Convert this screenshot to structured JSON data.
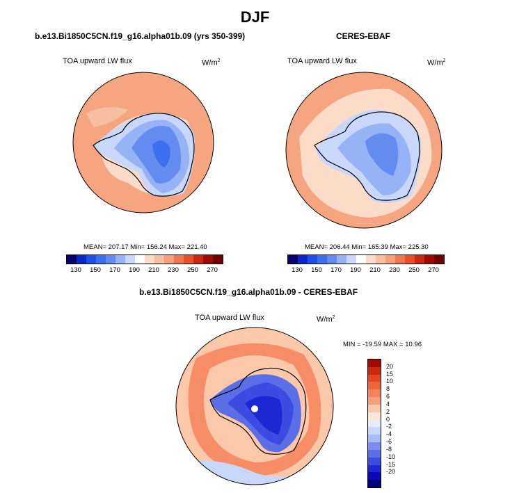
{
  "page": {
    "title": "DJF"
  },
  "panels": {
    "model": {
      "title": "b.e13.Bi1850C5CN.f19_g16.alpha01b.09 (yrs 350-399)",
      "variable": "TOA upward LW flux",
      "units": "W/m",
      "units_exp": "2",
      "stats": "MEAN= 207.17  Min= 156.24  Max= 221.40"
    },
    "obs": {
      "title": "CERES-EBAF",
      "variable": "TOA upward LW flux",
      "units": "W/m",
      "units_exp": "2",
      "stats": "MEAN= 206.44  Min= 165.39  Max= 225.30"
    },
    "diff": {
      "title": "b.e13.Bi1850C5CN.f19_g16.alpha01b.09 - CERES-EBAF",
      "variable": "TOA upward LW flux",
      "units": "W/m",
      "units_exp": "2",
      "stats": "MIN = -19.59 MAX =  10.96"
    }
  },
  "colorbars": {
    "abs": {
      "colors": [
        "#08006e",
        "#0a28c8",
        "#1e50e6",
        "#3c6ef0",
        "#648cf0",
        "#96b4f5",
        "#c8d7fa",
        "#ffffff",
        "#fbdcc8",
        "#f7bea0",
        "#f5a078",
        "#f07850",
        "#e65028",
        "#c8280f",
        "#a00a00",
        "#6e0000"
      ],
      "tick_labels": [
        "130",
        "150",
        "170",
        "190",
        "210",
        "230",
        "250",
        "270"
      ]
    },
    "diff": {
      "colors": [
        "#a00a00",
        "#c8280f",
        "#e6461e",
        "#f0643c",
        "#f5825a",
        "#f7a07d",
        "#fbc8aa",
        "#fde6d7",
        "#e6eefa",
        "#c8d7fa",
        "#a5bef5",
        "#828cf0",
        "#5a6ee6",
        "#3c4be1",
        "#1e28d2",
        "#0a0ab4",
        "#00007d"
      ],
      "tick_labels": [
        "20",
        "15",
        "10",
        "8",
        "6",
        "4",
        "2",
        "0",
        "-2",
        "-4",
        "-6",
        "-8",
        "-10",
        "-15",
        "-20"
      ]
    }
  }
}
